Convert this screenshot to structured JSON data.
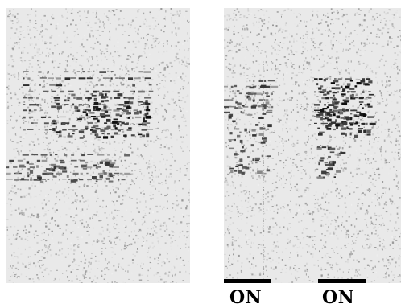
{
  "panels": [
    {
      "id": "left-panel"
    },
    {
      "id": "right-panel"
    }
  ],
  "labels": {
    "first": "ON",
    "second": "ON"
  },
  "colors": {
    "background": "#e9e9e9",
    "ink": "#000000"
  }
}
